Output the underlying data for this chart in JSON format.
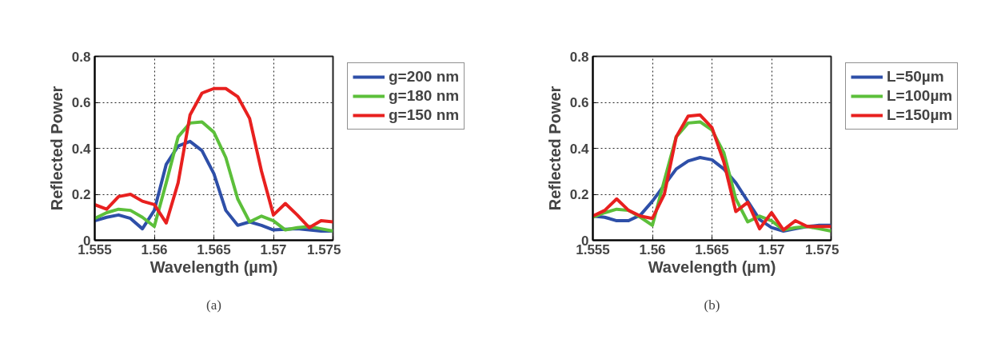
{
  "chart_data": [
    {
      "type": "line",
      "xlabel": "Wavelength (µm)",
      "ylabel": "Reflected Power",
      "annotations": [
        "(a)"
      ],
      "x": [
        1.555,
        1.556,
        1.557,
        1.558,
        1.559,
        1.56,
        1.561,
        1.562,
        1.563,
        1.564,
        1.565,
        1.566,
        1.567,
        1.568,
        1.569,
        1.57,
        1.571,
        1.572,
        1.573,
        1.574,
        1.575
      ],
      "series": [
        {
          "name": "g=200 nm",
          "color": "#2e4fa8",
          "values": [
            0.085,
            0.1,
            0.11,
            0.095,
            0.05,
            0.13,
            0.33,
            0.41,
            0.43,
            0.39,
            0.29,
            0.13,
            0.065,
            0.08,
            0.065,
            0.045,
            0.048,
            0.05,
            0.045,
            0.04,
            0.04
          ]
        },
        {
          "name": "g=180 nm",
          "color": "#5cbf3a",
          "values": [
            0.095,
            0.12,
            0.135,
            0.13,
            0.1,
            0.06,
            0.25,
            0.45,
            0.51,
            0.515,
            0.47,
            0.36,
            0.18,
            0.08,
            0.105,
            0.085,
            0.045,
            0.055,
            0.06,
            0.05,
            0.04
          ]
        },
        {
          "name": "g=150 nm",
          "color": "#e8201f",
          "values": [
            0.155,
            0.135,
            0.19,
            0.2,
            0.17,
            0.155,
            0.075,
            0.25,
            0.545,
            0.64,
            0.66,
            0.66,
            0.625,
            0.53,
            0.3,
            0.11,
            0.16,
            0.11,
            0.055,
            0.085,
            0.08
          ]
        }
      ],
      "xlim": [
        1.555,
        1.575
      ],
      "xticks": [
        1.555,
        1.56,
        1.565,
        1.57,
        1.575
      ],
      "ylim": [
        0,
        0.8
      ],
      "yticks": [
        0,
        0.2,
        0.4,
        0.6,
        0.8
      ],
      "grid": true,
      "legend": "right",
      "line_style": "solid"
    },
    {
      "type": "line",
      "xlabel": "Wavelength (µm)",
      "ylabel": "Reflected Power",
      "annotations": [
        "(b)"
      ],
      "x": [
        1.555,
        1.556,
        1.557,
        1.558,
        1.559,
        1.56,
        1.561,
        1.562,
        1.563,
        1.564,
        1.565,
        1.566,
        1.567,
        1.568,
        1.569,
        1.57,
        1.571,
        1.572,
        1.573,
        1.574,
        1.575
      ],
      "series": [
        {
          "name": "L=50µm",
          "color": "#2e4fa8",
          "values": [
            0.105,
            0.1,
            0.085,
            0.085,
            0.11,
            0.17,
            0.24,
            0.31,
            0.345,
            0.36,
            0.35,
            0.31,
            0.25,
            0.17,
            0.09,
            0.055,
            0.04,
            0.05,
            0.06,
            0.065,
            0.065
          ]
        },
        {
          "name": "L=100µm",
          "color": "#5cbf3a",
          "values": [
            0.1,
            0.12,
            0.135,
            0.13,
            0.1,
            0.065,
            0.26,
            0.45,
            0.51,
            0.515,
            0.48,
            0.38,
            0.18,
            0.08,
            0.105,
            0.085,
            0.045,
            0.055,
            0.06,
            0.05,
            0.04
          ]
        },
        {
          "name": "L=150µm",
          "color": "#e8201f",
          "values": [
            0.105,
            0.13,
            0.18,
            0.13,
            0.105,
            0.095,
            0.2,
            0.45,
            0.54,
            0.545,
            0.49,
            0.34,
            0.125,
            0.165,
            0.05,
            0.12,
            0.045,
            0.085,
            0.06,
            0.06,
            0.06
          ]
        }
      ],
      "xlim": [
        1.555,
        1.575
      ],
      "xticks": [
        1.555,
        1.56,
        1.565,
        1.57,
        1.575
      ],
      "ylim": [
        0,
        0.8
      ],
      "yticks": [
        0,
        0.2,
        0.4,
        0.6,
        0.8
      ],
      "grid": true,
      "legend": "right",
      "line_style": "solid"
    }
  ]
}
